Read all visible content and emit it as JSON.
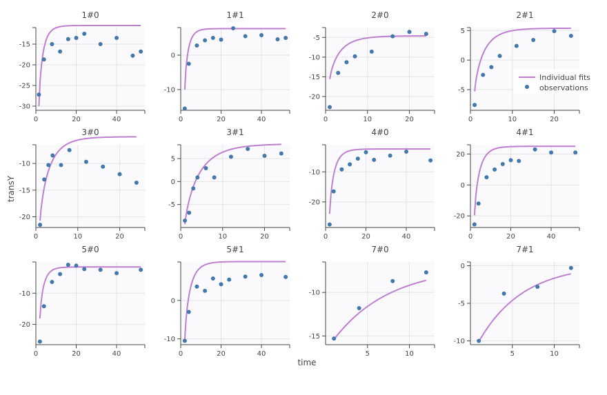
{
  "chart_data": {
    "type": "scatter",
    "xlabel": "time",
    "ylabel": "transY",
    "legend": {
      "position": "top-right",
      "entries": [
        {
          "label": "Individual fits",
          "kind": "line",
          "color": "#bf7fcf"
        },
        {
          "label": "observations",
          "kind": "point",
          "color": "#4477aa"
        }
      ]
    },
    "panels": [
      {
        "title": "1#0",
        "xlim": [
          0,
          54
        ],
        "ylim": [
          -31,
          -11
        ],
        "xticks": [
          0,
          20,
          40
        ],
        "yticks": [
          -30,
          -25,
          -20,
          -15
        ],
        "obs": [
          [
            1.5,
            -27.2
          ],
          [
            4,
            -18.7
          ],
          [
            8,
            -15
          ],
          [
            12,
            -16.8
          ],
          [
            16,
            -13.8
          ],
          [
            20,
            -13.5
          ],
          [
            24,
            -12.5
          ],
          [
            32,
            -15
          ],
          [
            40,
            -13.5
          ],
          [
            48,
            -17.8
          ],
          [
            52,
            -16.8
          ]
        ],
        "fit": {
          "A": -30.0,
          "B": 19.5,
          "k": 0.58,
          "p": 0.85
        }
      },
      {
        "title": "1#1",
        "xlim": [
          0,
          54
        ],
        "ylim": [
          -16,
          8
        ],
        "xticks": [
          0,
          20,
          40
        ],
        "yticks": [
          -10,
          0
        ],
        "obs": [
          [
            2,
            -15.5
          ],
          [
            4,
            -2.5
          ],
          [
            8,
            2.8
          ],
          [
            12,
            4.3
          ],
          [
            16,
            5
          ],
          [
            20,
            4.5
          ],
          [
            26,
            7.8
          ],
          [
            32,
            5.5
          ],
          [
            40,
            5.8
          ],
          [
            48,
            4.6
          ],
          [
            52,
            5
          ]
        ],
        "fit": {
          "A": -10.0,
          "B": 17.7,
          "k": 0.65,
          "p": 0.85
        }
      },
      {
        "title": "2#0",
        "xlim": [
          0,
          26
        ],
        "ylim": [
          -23.5,
          -2.5
        ],
        "xticks": [
          0,
          10,
          20
        ],
        "yticks": [
          -20,
          -15,
          -10,
          -5
        ],
        "obs": [
          [
            1,
            -22.7
          ],
          [
            3,
            -14
          ],
          [
            5,
            -11.3
          ],
          [
            7,
            -9.8
          ],
          [
            11,
            -8.6
          ],
          [
            16,
            -4.7
          ],
          [
            20,
            -3.6
          ],
          [
            24,
            -4.1
          ]
        ],
        "fit": {
          "A": -15.6,
          "B": 11.0,
          "k": 0.47,
          "p": 0.85
        }
      },
      {
        "title": "2#1",
        "xlim": [
          0,
          26
        ],
        "ylim": [
          -8.5,
          5.5
        ],
        "xticks": [
          0,
          10,
          20
        ],
        "yticks": [
          -5,
          0,
          5
        ],
        "obs": [
          [
            1,
            -7.6
          ],
          [
            3,
            -2.5
          ],
          [
            5,
            -1.2
          ],
          [
            7,
            0.7
          ],
          [
            11,
            2.4
          ],
          [
            15,
            3.4
          ],
          [
            20,
            4.9
          ],
          [
            24,
            4.1
          ]
        ],
        "fit": {
          "A": -5.3,
          "B": 10.7,
          "k": 0.5,
          "p": 0.85
        }
      },
      {
        "title": "3#0",
        "xlim": [
          0,
          26
        ],
        "ylim": [
          -22,
          -6.5
        ],
        "xticks": [
          0,
          10,
          20
        ],
        "yticks": [
          -20,
          -15,
          -10
        ],
        "obs": [
          [
            1,
            -21.5
          ],
          [
            2,
            -13
          ],
          [
            3,
            -10.3
          ],
          [
            4,
            -8.5
          ],
          [
            6,
            -10.3
          ],
          [
            8,
            -7.5
          ],
          [
            12,
            -9.7
          ],
          [
            16,
            -10.6
          ],
          [
            20,
            -12
          ],
          [
            24,
            -13.6
          ]
        ],
        "fit": {
          "A": -20.7,
          "B": 15.7,
          "k": 0.5,
          "p": 0.85
        }
      },
      {
        "title": "3#1",
        "xlim": [
          0,
          26
        ],
        "ylim": [
          -10,
          8
        ],
        "xticks": [
          0,
          10,
          20
        ],
        "yticks": [
          -5,
          0,
          5
        ],
        "obs": [
          [
            1,
            -8.5
          ],
          [
            2,
            -6.8
          ],
          [
            3,
            -1.5
          ],
          [
            4,
            0.9
          ],
          [
            6,
            2.9
          ],
          [
            8,
            0.9
          ],
          [
            12,
            5.4
          ],
          [
            16,
            7.1
          ],
          [
            20,
            5.6
          ],
          [
            24,
            6.1
          ]
        ],
        "fit": {
          "A": -9.3,
          "B": 17.5,
          "k": 0.35,
          "p": 0.85
        }
      },
      {
        "title": "4#0",
        "xlim": [
          0,
          54
        ],
        "ylim": [
          -28.5,
          -1
        ],
        "xticks": [
          0,
          20,
          40
        ],
        "yticks": [
          -20,
          -10
        ],
        "obs": [
          [
            2,
            -27.5
          ],
          [
            4,
            -16.5
          ],
          [
            8,
            -9.2
          ],
          [
            12,
            -7.5
          ],
          [
            16,
            -5.6
          ],
          [
            20,
            -3.5
          ],
          [
            24,
            -6
          ],
          [
            32,
            -4.6
          ],
          [
            40,
            -3.3
          ],
          [
            52,
            -6.2
          ]
        ],
        "fit": {
          "A": -24.0,
          "B": 21.6,
          "k": 0.51,
          "p": 0.85
        }
      },
      {
        "title": "4#1",
        "xlim": [
          0,
          54
        ],
        "ylim": [
          -27.5,
          26
        ],
        "xticks": [
          0,
          20,
          40
        ],
        "yticks": [
          -20,
          0,
          20
        ],
        "obs": [
          [
            2,
            -25.5
          ],
          [
            4,
            -12
          ],
          [
            8,
            5
          ],
          [
            12,
            10
          ],
          [
            16,
            13.5
          ],
          [
            20,
            16
          ],
          [
            24,
            15.5
          ],
          [
            32,
            23
          ],
          [
            40,
            21
          ],
          [
            52,
            21
          ]
        ],
        "fit": {
          "A": -19.6,
          "B": 44.6,
          "k": 0.46,
          "p": 0.85
        }
      },
      {
        "title": "5#0",
        "xlim": [
          0,
          54
        ],
        "ylim": [
          -26.5,
          0
        ],
        "xticks": [
          0,
          20,
          40
        ],
        "yticks": [
          -20,
          -10
        ],
        "obs": [
          [
            2,
            -25.5
          ],
          [
            4,
            -14.2
          ],
          [
            8,
            -6.4
          ],
          [
            12,
            -3.9
          ],
          [
            16,
            -0.9
          ],
          [
            20,
            -1.2
          ],
          [
            24,
            -2.3
          ],
          [
            32,
            -2.5
          ],
          [
            40,
            -3.6
          ],
          [
            52,
            -2.5
          ]
        ],
        "fit": {
          "A": -18.1,
          "B": 16.5,
          "k": 0.59,
          "p": 0.85
        }
      },
      {
        "title": "5#1",
        "xlim": [
          0,
          54
        ],
        "ylim": [
          -11.5,
          10
        ],
        "xticks": [
          0,
          20,
          40
        ],
        "yticks": [
          -10,
          0
        ],
        "obs": [
          [
            2,
            -10.5
          ],
          [
            4,
            -3
          ],
          [
            8,
            3.6
          ],
          [
            12,
            2.5
          ],
          [
            16,
            5.7
          ],
          [
            20,
            4.2
          ],
          [
            24,
            5.4
          ],
          [
            32,
            6.2
          ],
          [
            40,
            6.6
          ],
          [
            52,
            6.1
          ]
        ],
        "fit": {
          "A": -10.3,
          "B": 20.4,
          "k": 0.45,
          "p": 0.85
        }
      },
      {
        "title": "7#0",
        "xlim": [
          0,
          13
        ],
        "ylim": [
          -16,
          -6.5
        ],
        "xticks": [
          5,
          10
        ],
        "yticks": [
          -15,
          -10
        ],
        "obs": [
          [
            1,
            -15.3
          ],
          [
            4,
            -11.8
          ],
          [
            8,
            -8.7
          ],
          [
            12,
            -7.7
          ]
        ],
        "fit": {
          "A": -15.4,
          "B": 8.4,
          "k": 0.15,
          "p": 1.0
        }
      },
      {
        "title": "7#1",
        "xlim": [
          0,
          13
        ],
        "ylim": [
          -10.5,
          0.5
        ],
        "xticks": [
          5,
          10
        ],
        "yticks": [
          -10,
          -5,
          0
        ],
        "obs": [
          [
            1,
            -10
          ],
          [
            4,
            -3.7
          ],
          [
            8,
            -2.8
          ],
          [
            12,
            -0.3
          ]
        ],
        "fit": {
          "A": -10.1,
          "B": 10.3,
          "k": 0.19,
          "p": 1.0
        }
      }
    ]
  }
}
